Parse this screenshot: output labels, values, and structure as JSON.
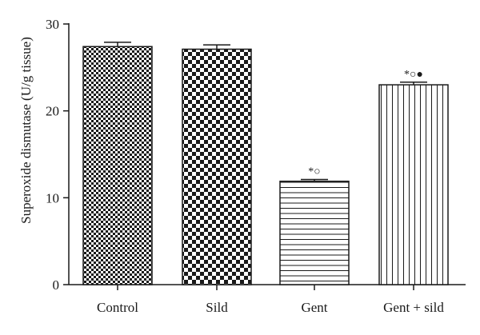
{
  "chart_data": {
    "type": "bar",
    "title": "",
    "xlabel": "",
    "ylabel": "Superoxide dismutase (U/g tissue)",
    "ylim": [
      0,
      30
    ],
    "yticks": [
      0,
      10,
      20,
      30
    ],
    "grid": false,
    "categories": [
      "Control",
      "Sild",
      "Gent",
      "Gent + sild"
    ],
    "values": [
      27.4,
      27.1,
      11.9,
      23.0
    ],
    "errors": [
      0.5,
      0.5,
      0.2,
      0.3
    ],
    "patterns": [
      "fine-checker",
      "coarse-checker",
      "horizontal-lines",
      "vertical-lines"
    ],
    "significance": [
      "",
      "",
      "*○",
      "*○●"
    ],
    "colors": {
      "fill": "#1a1a1a",
      "background": "#ffffff",
      "axis": "#1a1a1a"
    }
  }
}
